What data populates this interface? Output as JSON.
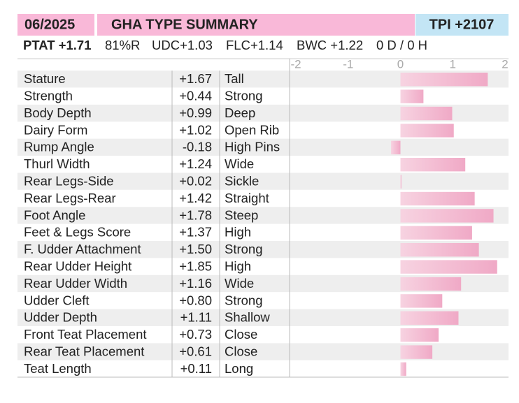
{
  "header": {
    "date": "06/2025",
    "title": "GHA TYPE SUMMARY",
    "tpi": "TPI +2107",
    "indexes": [
      "PTAT +1.71",
      "81%R",
      "UDC+1.03",
      "FLC+1.14",
      "BWC +1.22",
      "0 D /  0 H"
    ]
  },
  "chart_data": {
    "type": "hbar",
    "categories": [
      "Stature",
      "Strength",
      "Body Depth",
      "Dairy Form",
      "Rump Angle",
      "Thurl Width",
      "Rear Legs-Side",
      "Rear Legs-Rear",
      "Foot Angle",
      "Feet & Legs Score",
      "F. Udder Attachment",
      "Rear Udder Height",
      "Rear Udder Width",
      "Udder Cleft",
      "Udder Depth",
      "Front Teat Placement",
      "Rear Teat Placement",
      "Teat Length"
    ],
    "values": [
      1.67,
      0.44,
      0.99,
      1.02,
      -0.18,
      1.24,
      0.02,
      1.42,
      1.78,
      1.37,
      1.5,
      1.85,
      1.16,
      0.8,
      1.11,
      0.73,
      0.61,
      0.11
    ],
    "value_labels": [
      "+1.67",
      "+0.44",
      "+0.99",
      "+1.02",
      "-0.18",
      "+1.24",
      "+0.02",
      "+1.42",
      "+1.78",
      "+1.37",
      "+1.50",
      "+1.85",
      "+1.16",
      "+0.80",
      "+1.11",
      "+0.73",
      "+0.61",
      "+0.11"
    ],
    "descriptors": [
      "Tall",
      "Strong",
      "Deep",
      "Open Rib",
      "High Pins",
      "Wide",
      "Sickle",
      "Straight",
      "Steep",
      "High",
      "Strong",
      "High",
      "Wide",
      "Strong",
      "Shallow",
      "Close",
      "Close",
      "Long"
    ],
    "xlim": [
      -2,
      2
    ],
    "xticks": [
      -2,
      -1,
      0,
      1,
      2
    ],
    "color": "#f2b3cc",
    "grid": false
  }
}
